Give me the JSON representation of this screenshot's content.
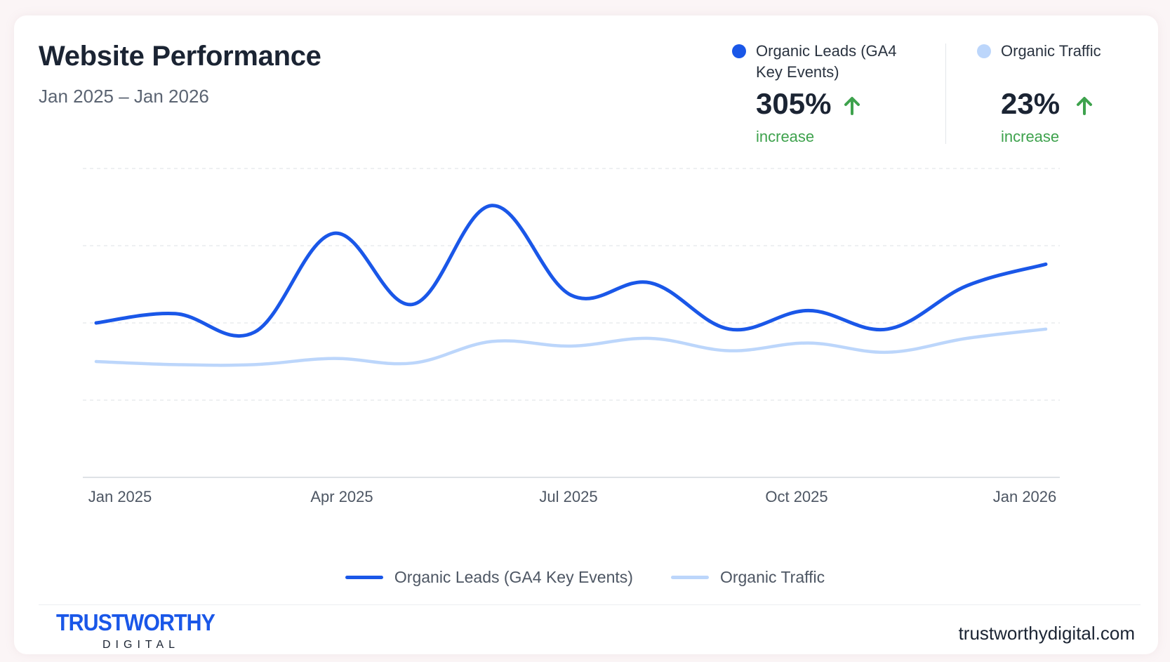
{
  "header": {
    "title": "Website Performance",
    "date_range": "Jan 2025 – Jan 2026"
  },
  "stats": [
    {
      "label": "Organic Leads (GA4 Key Events)",
      "value": "305%",
      "caption": "increase",
      "direction": "up",
      "dot_color": "#1a57e8"
    },
    {
      "label": "Organic Traffic",
      "value": "23%",
      "caption": "increase",
      "direction": "up",
      "dot_color": "#bcd6fb"
    }
  ],
  "colors": {
    "leads": "#1a57e8",
    "traffic": "#bcd6fb",
    "increase": "#3ea24d",
    "grid": "#e4e7eb",
    "axis": "#d4d8dd"
  },
  "chart_data": {
    "type": "line",
    "x": [
      0,
      1,
      2,
      3,
      4,
      5,
      6,
      7,
      8,
      9,
      10,
      11,
      12
    ],
    "x_tick_labels": [
      "Jan 2025",
      "Apr 2025",
      "Jul 2025",
      "Oct 2025",
      "Jan 2026"
    ],
    "x_tick_positions": [
      0,
      3,
      6,
      9,
      12
    ],
    "ylim": [
      0,
      100
    ],
    "grid": true,
    "y_tick_labels_shown": false,
    "series": [
      {
        "name": "Organic Leads (GA4 Key Events)",
        "values": [
          50,
          53,
          47,
          79,
          56,
          88,
          59,
          63,
          48,
          54,
          48,
          62,
          69
        ]
      },
      {
        "name": "Organic Traffic",
        "values": [
          37.5,
          36.5,
          36.5,
          38.5,
          37,
          44,
          42.5,
          45,
          41,
          43.5,
          40.5,
          45,
          48
        ]
      }
    ],
    "legend_position": "bottom-center"
  },
  "footer": {
    "logo_text": "TRUSTWORTHY",
    "logo_subtext": "DIGITAL",
    "website": "trustworthydigital.com"
  }
}
